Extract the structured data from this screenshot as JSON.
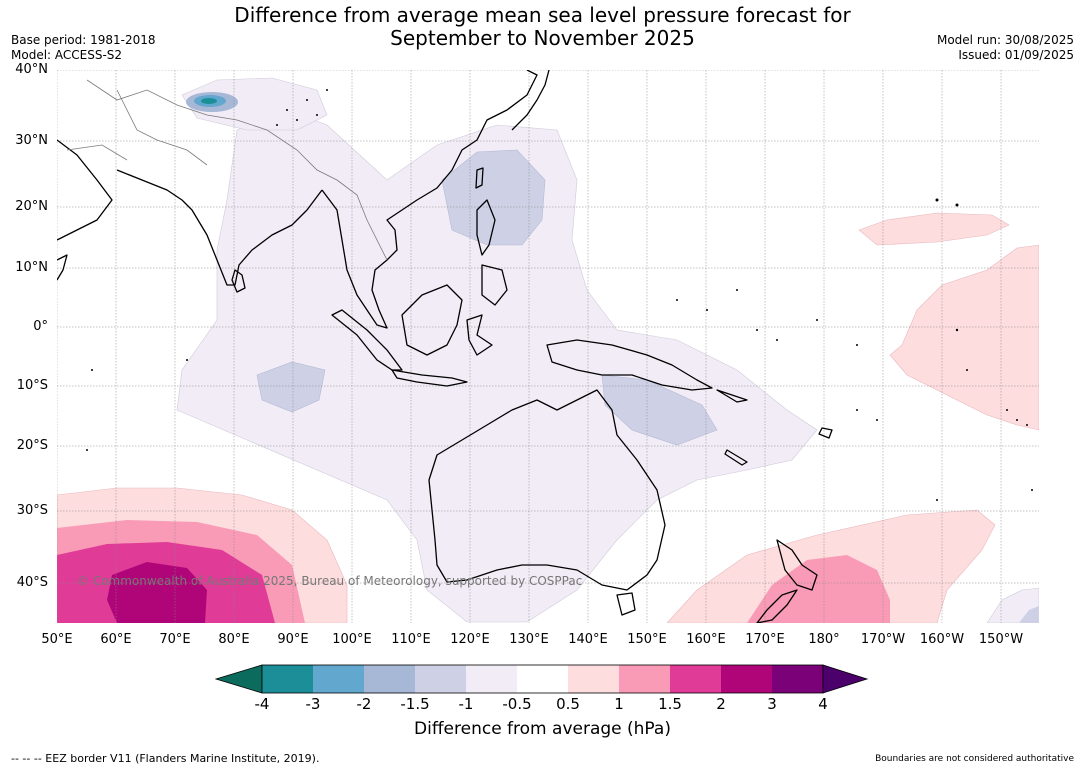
{
  "title_line1": "Difference from average mean sea level pressure forecast for",
  "title_line2": "September to November 2025",
  "base_period": "Base period: 1981-2018",
  "model": "Model: ACCESS-S2",
  "model_run": "Model run: 30/08/2025",
  "issued": "Issued: 01/09/2025",
  "lat_labels": [
    "40°N",
    "30°N",
    "20°N",
    "10°N",
    "0°",
    "10°S",
    "20°S",
    "30°S",
    "40°S"
  ],
  "lon_labels": [
    "50°E",
    "60°E",
    "70°E",
    "80°E",
    "90°E",
    "100°E",
    "110°E",
    "120°E",
    "130°E",
    "140°E",
    "150°E",
    "160°E",
    "170°E",
    "180°",
    "170°W",
    "160°W",
    "150°W"
  ],
  "colorbar": {
    "levels": [
      "-4",
      "-3",
      "-2",
      "-1.5",
      "-1",
      "-0.5",
      "0.5",
      "1",
      "1.5",
      "2",
      "3",
      "4"
    ],
    "colors": {
      "below_min": "#0b6b5d",
      "bins": [
        "#1b8e98",
        "#62a7cd",
        "#a7b8d7",
        "#ced1e6",
        "#f1ecf5",
        "#ffffff",
        "#fdddde",
        "#f99bb6",
        "#df3b97",
        "#b00578",
        "#7b0178"
      ],
      "above_max": "#4b006b"
    },
    "title": "Difference from average (hPa)"
  },
  "copyright": "© Commonwealth of Australia 2025, Bureau of Meteorology, supported by COSPPac",
  "footer_left": "--  --  -- EEZ border V11 (Flanders Marine Institute, 2019).",
  "footer_right": "Boundaries are not considered authoritative"
}
